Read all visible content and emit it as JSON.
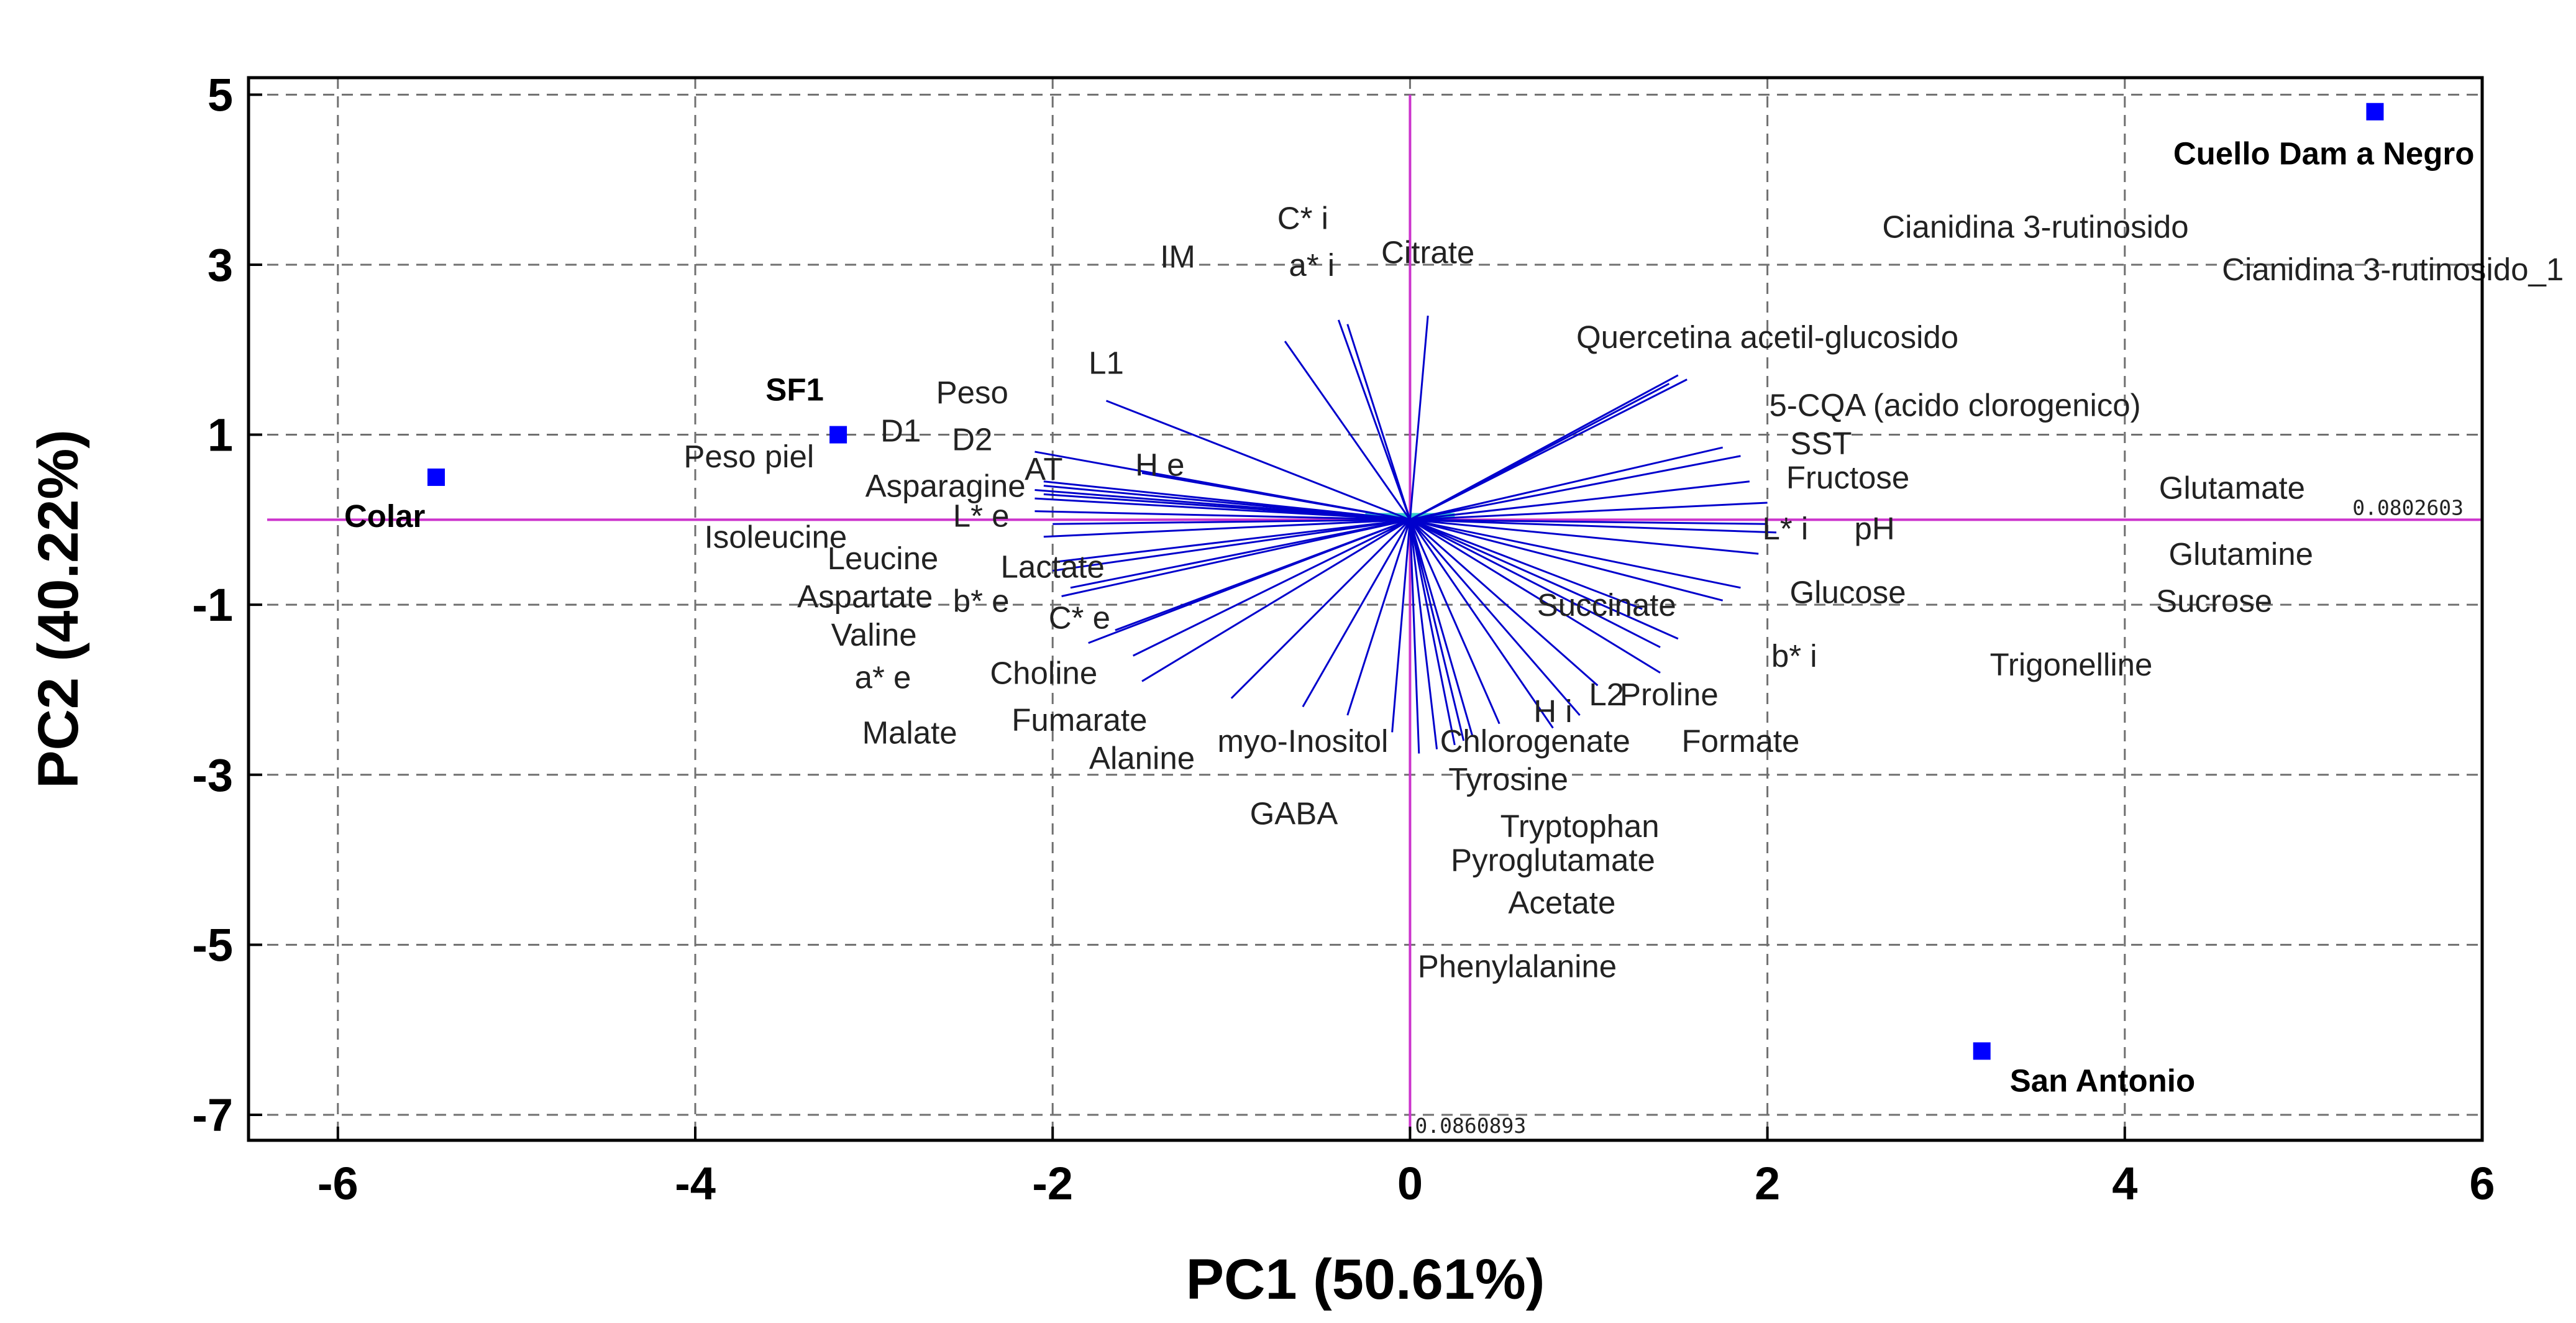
{
  "chart_data": {
    "type": "scatter",
    "subtype": "pca-biplot",
    "xlabel": "PC1 (50.61%)",
    "ylabel": "PC2 (40.22%)",
    "xlim": [
      -6.5,
      6
    ],
    "ylim": [
      -7.3,
      5.2
    ],
    "xticks": [
      -6,
      -4,
      -2,
      0,
      2,
      4,
      6
    ],
    "yticks": [
      -7,
      -5,
      -3,
      -1,
      1,
      3,
      5
    ],
    "xtick_labels": [
      "-6",
      "-4",
      "-2",
      "0",
      "2",
      "4",
      "6"
    ],
    "ytick_labels": [
      "-7",
      "-5",
      "-3",
      "-1",
      "1",
      "3",
      "5"
    ],
    "grid": true,
    "colors": {
      "observation": "#0000ff",
      "loading": "#0000cc",
      "axis_line": "#cc33cc",
      "label": "#222222"
    },
    "scale_labels": {
      "x_axis": "0.0802603",
      "y_axis": "0.0860893"
    },
    "observations": [
      {
        "name": "Cuello Dam a Negro",
        "x": 5.4,
        "y": 4.8
      },
      {
        "name": "SF1",
        "x": -3.2,
        "y": 1.0
      },
      {
        "name": "Colar",
        "x": -5.45,
        "y": 0.5
      },
      {
        "name": "San Antonio",
        "x": 3.2,
        "y": -6.25
      }
    ],
    "variables": [
      {
        "name": "C* i",
        "label_x": -0.6,
        "label_y": 3.55,
        "end_x": -0.4,
        "end_y": 2.35
      },
      {
        "name": "a* i",
        "label_x": -0.55,
        "label_y": 3.0,
        "end_x": -0.35,
        "end_y": 2.3
      },
      {
        "name": "Citrate",
        "label_x": 0.1,
        "label_y": 3.15,
        "end_x": 0.1,
        "end_y": 2.4
      },
      {
        "name": "IM",
        "label_x": -1.3,
        "label_y": 3.1,
        "end_x": -0.7,
        "end_y": 2.1
      },
      {
        "name": "Cianidina 3-rutinosido",
        "label_x": 3.5,
        "label_y": 3.45,
        "end_x": 1.55,
        "end_y": 1.65
      },
      {
        "name": "Cianidina 3-rutinosido_1",
        "label_x": 5.5,
        "label_y": 2.95,
        "end_x": 1.5,
        "end_y": 1.7
      },
      {
        "name": "Quercetina acetil-glucosido",
        "label_x": 2.0,
        "label_y": 2.15,
        "end_x": 1.45,
        "end_y": 1.6
      },
      {
        "name": "5-CQA (acido clorogenico)",
        "label_x": 3.05,
        "label_y": 1.35,
        "end_x": 1.75,
        "end_y": 0.85
      },
      {
        "name": "SST",
        "label_x": 2.3,
        "label_y": 0.9,
        "end_x": 1.85,
        "end_y": 0.75
      },
      {
        "name": "Fructose",
        "label_x": 2.45,
        "label_y": 0.5,
        "end_x": 1.9,
        "end_y": 0.45
      },
      {
        "name": "Glutamate",
        "label_x": 4.6,
        "label_y": 0.38,
        "end_x": 2.0,
        "end_y": 0.2
      },
      {
        "name": "L* i",
        "label_x": 2.1,
        "label_y": -0.1,
        "end_x": 2.05,
        "end_y": -0.15
      },
      {
        "name": "pH",
        "label_x": 2.6,
        "label_y": -0.1,
        "end_x": 2.0,
        "end_y": -0.05
      },
      {
        "name": "Glutamine",
        "label_x": 4.65,
        "label_y": -0.4,
        "end_x": 1.95,
        "end_y": -0.4
      },
      {
        "name": "Glucose",
        "label_x": 2.45,
        "label_y": -0.85,
        "end_x": 1.85,
        "end_y": -0.8
      },
      {
        "name": "Sucrose",
        "label_x": 4.5,
        "label_y": -0.95,
        "end_x": 1.75,
        "end_y": -0.95
      },
      {
        "name": "Succinate",
        "label_x": 1.1,
        "label_y": -1.0,
        "end_x": 1.3,
        "end_y": -1.05
      },
      {
        "name": "b* i",
        "label_x": 2.15,
        "label_y": -1.6,
        "end_x": 1.5,
        "end_y": -1.4
      },
      {
        "name": "Trigonelline",
        "label_x": 3.7,
        "label_y": -1.7,
        "end_x": 1.4,
        "end_y": -1.5
      },
      {
        "name": "Proline",
        "label_x": 1.45,
        "label_y": -2.05,
        "end_x": 1.4,
        "end_y": -1.8
      },
      {
        "name": "L2",
        "label_x": 1.1,
        "label_y": -2.05,
        "end_x": 1.05,
        "end_y": -1.95
      },
      {
        "name": "H i",
        "label_x": 0.8,
        "label_y": -2.25,
        "end_x": 0.8,
        "end_y": -2.45
      },
      {
        "name": "Formate",
        "label_x": 1.85,
        "label_y": -2.6,
        "end_x": 0.95,
        "end_y": -2.3
      },
      {
        "name": "Chlorogenate",
        "label_x": 0.7,
        "label_y": -2.6,
        "end_x": 0.5,
        "end_y": -2.4
      },
      {
        "name": "Tyrosine",
        "label_x": 0.55,
        "label_y": -3.05,
        "end_x": 0.35,
        "end_y": -2.55
      },
      {
        "name": "Tryptophan",
        "label_x": 0.95,
        "label_y": -3.6,
        "end_x": 0.3,
        "end_y": -2.6
      },
      {
        "name": "Pyroglutamate",
        "label_x": 0.8,
        "label_y": -4.0,
        "end_x": 0.25,
        "end_y": -2.65
      },
      {
        "name": "Acetate",
        "label_x": 0.85,
        "label_y": -4.5,
        "end_x": 0.15,
        "end_y": -2.7
      },
      {
        "name": "Phenylalanine",
        "label_x": 0.6,
        "label_y": -5.25,
        "end_x": 0.05,
        "end_y": -2.75
      },
      {
        "name": "myo-Inositol",
        "label_x": -0.6,
        "label_y": -2.6,
        "end_x": -0.1,
        "end_y": -2.5
      },
      {
        "name": "GABA",
        "label_x": -0.65,
        "label_y": -3.45,
        "end_x": -0.35,
        "end_y": -2.3
      },
      {
        "name": "Alanine",
        "label_x": -1.5,
        "label_y": -2.8,
        "end_x": -0.6,
        "end_y": -2.2
      },
      {
        "name": "Fumarate",
        "label_x": -1.85,
        "label_y": -2.35,
        "end_x": -1.0,
        "end_y": -2.1
      },
      {
        "name": "Choline",
        "label_x": -2.05,
        "label_y": -1.8,
        "end_x": -1.55,
        "end_y": -1.6
      },
      {
        "name": "C* e",
        "label_x": -1.85,
        "label_y": -1.15,
        "end_x": -1.65,
        "end_y": -1.3
      },
      {
        "name": "Lactate",
        "label_x": -2.0,
        "label_y": -0.55,
        "end_x": -2.0,
        "end_y": -0.5
      },
      {
        "name": "b* e",
        "label_x": -2.4,
        "label_y": -0.95,
        "end_x": -1.9,
        "end_y": -0.8
      },
      {
        "name": "L* e",
        "label_x": -2.4,
        "label_y": 0.05,
        "end_x": -2.0,
        "end_y": -0.05
      },
      {
        "name": "AT",
        "label_x": -2.05,
        "label_y": 0.6,
        "end_x": -2.1,
        "end_y": 0.25
      },
      {
        "name": "H e",
        "label_x": -1.4,
        "label_y": 0.65,
        "end_x": -1.5,
        "end_y": 0.55
      },
      {
        "name": "L1",
        "label_x": -1.7,
        "label_y": 1.85,
        "end_x": -1.7,
        "end_y": 1.4
      },
      {
        "name": "Peso",
        "label_x": -2.45,
        "label_y": 1.5,
        "end_x": -2.1,
        "end_y": 0.8
      },
      {
        "name": "D1",
        "label_x": -2.85,
        "label_y": 1.05,
        "end_x": -2.05,
        "end_y": 0.45
      },
      {
        "name": "D2",
        "label_x": -2.45,
        "label_y": 0.95,
        "end_x": -2.05,
        "end_y": 0.4
      },
      {
        "name": "Peso piel",
        "label_x": -3.7,
        "label_y": 0.75,
        "end_x": -2.1,
        "end_y": 0.35
      },
      {
        "name": "Asparagine",
        "label_x": -2.6,
        "label_y": 0.4,
        "end_x": -2.05,
        "end_y": 0.3
      },
      {
        "name": "Isoleucine",
        "label_x": -3.55,
        "label_y": -0.2,
        "end_x": -2.1,
        "end_y": 0.1
      },
      {
        "name": "Leucine",
        "label_x": -2.95,
        "label_y": -0.45,
        "end_x": -2.05,
        "end_y": -0.2
      },
      {
        "name": "Aspartate",
        "label_x": -3.05,
        "label_y": -0.9,
        "end_x": -2.0,
        "end_y": -0.6
      },
      {
        "name": "Valine",
        "label_x": -3.0,
        "label_y": -1.35,
        "end_x": -1.95,
        "end_y": -0.9
      },
      {
        "name": "a* e",
        "label_x": -2.95,
        "label_y": -1.85,
        "end_x": -1.8,
        "end_y": -1.45
      },
      {
        "name": "Malate",
        "label_x": -2.8,
        "label_y": -2.5,
        "end_x": -1.5,
        "end_y": -1.9
      }
    ]
  }
}
